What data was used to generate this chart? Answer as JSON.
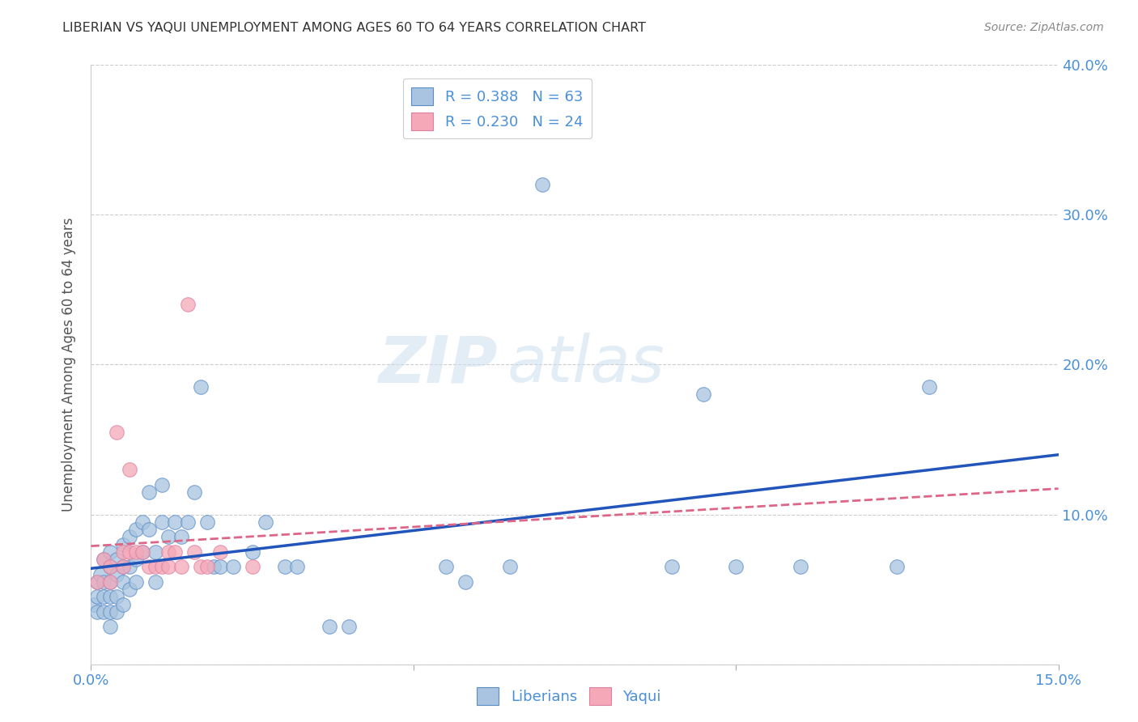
{
  "title": "LIBERIAN VS YAQUI UNEMPLOYMENT AMONG AGES 60 TO 64 YEARS CORRELATION CHART",
  "source": "Source: ZipAtlas.com",
  "ylabel": "Unemployment Among Ages 60 to 64 years",
  "xlim": [
    0.0,
    0.15
  ],
  "ylim": [
    0.0,
    0.4
  ],
  "xticks": [
    0.0,
    0.05,
    0.1,
    0.15
  ],
  "xtick_labels": [
    "0.0%",
    "",
    "",
    "15.0%"
  ],
  "yticks": [
    0.0,
    0.1,
    0.2,
    0.3,
    0.4
  ],
  "ytick_labels_left": [
    "",
    "",
    "",
    "",
    ""
  ],
  "ytick_labels_right": [
    "",
    "10.0%",
    "20.0%",
    "30.0%",
    "40.0%"
  ],
  "liberian_color": "#a8c4e0",
  "yaqui_color": "#f4a8b8",
  "liberian_edge_color": "#5b8dc8",
  "yaqui_edge_color": "#e080a0",
  "liberian_line_color": "#2255bb",
  "yaqui_line_color": "#dd6688",
  "legend_R1": "0.388",
  "legend_N1": "63",
  "legend_R2": "0.230",
  "legend_N2": "24",
  "liberian_x": [
    0.0005,
    0.001,
    0.001,
    0.001,
    0.0015,
    0.002,
    0.002,
    0.002,
    0.002,
    0.003,
    0.003,
    0.003,
    0.003,
    0.003,
    0.003,
    0.004,
    0.004,
    0.004,
    0.004,
    0.005,
    0.005,
    0.005,
    0.005,
    0.006,
    0.006,
    0.006,
    0.007,
    0.007,
    0.007,
    0.008,
    0.008,
    0.009,
    0.009,
    0.01,
    0.01,
    0.011,
    0.011,
    0.012,
    0.013,
    0.014,
    0.015,
    0.016,
    0.017,
    0.018,
    0.019,
    0.02,
    0.022,
    0.025,
    0.027,
    0.03,
    0.032,
    0.037,
    0.04,
    0.055,
    0.058,
    0.065,
    0.07,
    0.09,
    0.095,
    0.1,
    0.11,
    0.125,
    0.13
  ],
  "liberian_y": [
    0.04,
    0.055,
    0.045,
    0.035,
    0.06,
    0.07,
    0.055,
    0.045,
    0.035,
    0.075,
    0.065,
    0.055,
    0.045,
    0.035,
    0.025,
    0.07,
    0.06,
    0.045,
    0.035,
    0.08,
    0.065,
    0.055,
    0.04,
    0.085,
    0.065,
    0.05,
    0.09,
    0.07,
    0.055,
    0.095,
    0.075,
    0.115,
    0.09,
    0.075,
    0.055,
    0.12,
    0.095,
    0.085,
    0.095,
    0.085,
    0.095,
    0.115,
    0.185,
    0.095,
    0.065,
    0.065,
    0.065,
    0.075,
    0.095,
    0.065,
    0.065,
    0.025,
    0.025,
    0.065,
    0.055,
    0.065,
    0.32,
    0.065,
    0.18,
    0.065,
    0.065,
    0.065,
    0.185
  ],
  "yaqui_x": [
    0.001,
    0.002,
    0.003,
    0.003,
    0.004,
    0.005,
    0.005,
    0.006,
    0.006,
    0.007,
    0.008,
    0.009,
    0.01,
    0.011,
    0.012,
    0.012,
    0.013,
    0.014,
    0.015,
    0.016,
    0.017,
    0.018,
    0.02,
    0.025
  ],
  "yaqui_y": [
    0.055,
    0.07,
    0.065,
    0.055,
    0.155,
    0.075,
    0.065,
    0.13,
    0.075,
    0.075,
    0.075,
    0.065,
    0.065,
    0.065,
    0.075,
    0.065,
    0.075,
    0.065,
    0.24,
    0.075,
    0.065,
    0.065,
    0.075,
    0.065
  ],
  "watermark_zip": "ZIP",
  "watermark_atlas": "atlas",
  "background_color": "#ffffff",
  "title_color": "#333333",
  "label_color": "#555555",
  "tick_color": "#4a90d9",
  "grid_color": "#cccccc"
}
